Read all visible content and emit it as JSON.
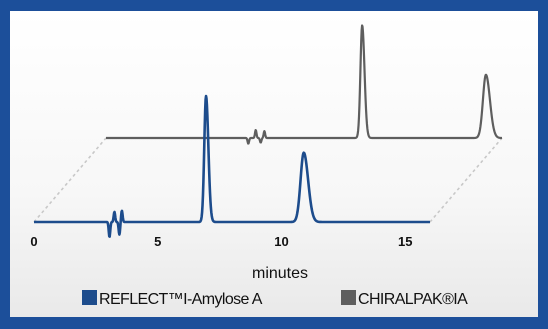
{
  "chart_data": {
    "type": "line",
    "xlabel": "minutes",
    "xlim": [
      0,
      16
    ],
    "x_ticks": [
      "0",
      "5",
      "10",
      "15"
    ],
    "x_tick_values": [
      0,
      5,
      10,
      15
    ],
    "grid": false,
    "legend_position": "bottom",
    "series": [
      {
        "name": "REFLECT™I-Amylose A",
        "color": "#1d4c8c",
        "range": [
          0,
          16
        ],
        "peaks": [
          {
            "x": 6.95,
            "height": 1.0,
            "width": 0.07
          },
          {
            "x": 10.9,
            "height": 0.55,
            "width": 0.13
          }
        ],
        "noise": [
          {
            "x": 3.05,
            "amp": -0.12
          },
          {
            "x": 3.25,
            "amp": 0.08
          },
          {
            "x": 3.45,
            "amp": -0.1
          },
          {
            "x": 3.55,
            "amp": 0.09
          }
        ]
      },
      {
        "name": "CHIRALPAK®IA",
        "color": "#5e5e5e",
        "range": [
          0,
          16
        ],
        "peaks": [
          {
            "x": 10.35,
            "height": 0.98,
            "width": 0.07
          },
          {
            "x": 15.35,
            "height": 0.55,
            "width": 0.12
          }
        ],
        "noise": [
          {
            "x": 5.75,
            "amp": -0.05
          },
          {
            "x": 6.05,
            "amp": 0.07
          },
          {
            "x": 6.25,
            "amp": -0.04
          },
          {
            "x": 6.4,
            "amp": 0.06
          }
        ]
      }
    ]
  }
}
